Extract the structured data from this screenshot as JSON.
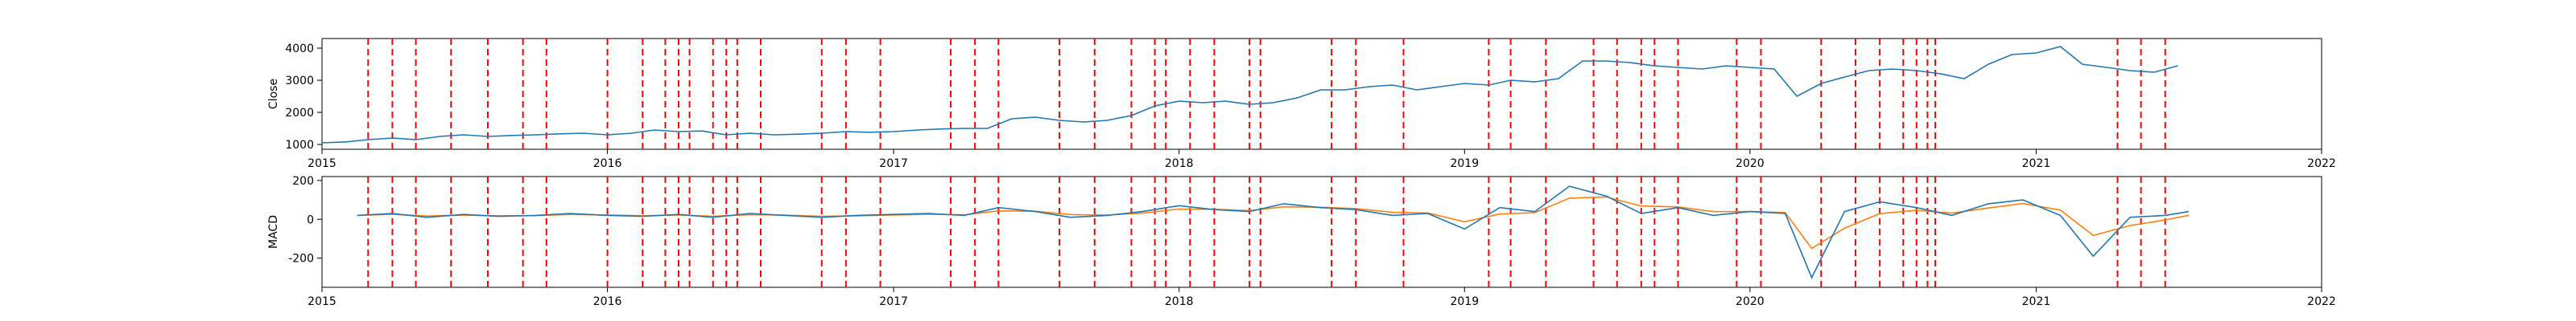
{
  "chart_data": [
    {
      "type": "line",
      "ylabel": "Close",
      "xlim": [
        "2015-01-01",
        "2022-01-01"
      ],
      "ylim": [
        850,
        4300
      ],
      "x_ticks": [
        "2015",
        "2016",
        "2017",
        "2018",
        "2019",
        "2020",
        "2021",
        "2022"
      ],
      "y_ticks": [
        1000,
        2000,
        3000,
        4000
      ],
      "grid": false,
      "colors": {
        "series": "#1f77b4",
        "signal": "#ff0000"
      },
      "series": [
        {
          "x": [
            "2015-01-01",
            "2015-02-01",
            "2015-03-01",
            "2015-04-01",
            "2015-05-01",
            "2015-06-01",
            "2015-07-01",
            "2015-08-01",
            "2015-09-01",
            "2015-10-01",
            "2015-11-01",
            "2015-12-01",
            "2016-01-01",
            "2016-02-01",
            "2016-03-01",
            "2016-04-01",
            "2016-05-01",
            "2016-06-01",
            "2016-07-01",
            "2016-08-01",
            "2016-09-01",
            "2016-10-01",
            "2016-11-01",
            "2016-12-01",
            "2017-01-01",
            "2017-02-01",
            "2017-03-01",
            "2017-04-01",
            "2017-05-01",
            "2017-06-01",
            "2017-07-01",
            "2017-08-01",
            "2017-09-01",
            "2017-10-01",
            "2017-11-01",
            "2017-12-01",
            "2018-01-01",
            "2018-02-01",
            "2018-03-01",
            "2018-04-01",
            "2018-05-01",
            "2018-06-01",
            "2018-07-01",
            "2018-08-01",
            "2018-09-01",
            "2018-10-01",
            "2018-11-01",
            "2018-12-01",
            "2019-01-01",
            "2019-02-01",
            "2019-03-01",
            "2019-04-01",
            "2019-05-01",
            "2019-06-01",
            "2019-07-01",
            "2019-08-01",
            "2019-09-01",
            "2019-10-01",
            "2019-11-01",
            "2019-12-01",
            "2020-01-01",
            "2020-02-01",
            "2020-03-01",
            "2020-04-01",
            "2020-05-01",
            "2020-06-01",
            "2020-07-01",
            "2020-08-01",
            "2020-09-01",
            "2020-10-01",
            "2020-11-01",
            "2020-12-01",
            "2021-01-01",
            "2021-02-01",
            "2021-03-01",
            "2021-04-01",
            "2021-05-01",
            "2021-06-01",
            "2021-07-01"
          ],
          "values": [
            1050,
            1080,
            1150,
            1200,
            1150,
            1250,
            1300,
            1250,
            1280,
            1300,
            1330,
            1350,
            1300,
            1350,
            1450,
            1400,
            1420,
            1300,
            1350,
            1300,
            1320,
            1350,
            1400,
            1380,
            1400,
            1450,
            1480,
            1500,
            1500,
            1800,
            1850,
            1750,
            1700,
            1750,
            1900,
            2200,
            2350,
            2300,
            2350,
            2250,
            2300,
            2450,
            2700,
            2700,
            2800,
            2850,
            2700,
            2800,
            2900,
            2850,
            3000,
            2950,
            3050,
            3600,
            3600,
            3550,
            3450,
            3400,
            3350,
            3450,
            3400,
            3350,
            2500,
            2900,
            3100,
            3300,
            3350,
            3300,
            3200,
            3050,
            3500,
            3800,
            3850,
            4050,
            3500,
            3400,
            3300,
            3250,
            3450
          ]
        }
      ],
      "signals": [
        "2015-03-01",
        "2015-04-01",
        "2015-05-01",
        "2015-06-15",
        "2015-08-01",
        "2015-09-15",
        "2015-10-15",
        "2016-01-01",
        "2016-02-15",
        "2016-03-15",
        "2016-04-01",
        "2016-04-15",
        "2016-05-15",
        "2016-06-01",
        "2016-06-15",
        "2016-07-15",
        "2016-10-01",
        "2016-11-01",
        "2016-12-15",
        "2017-03-15",
        "2017-04-15",
        "2017-05-15",
        "2017-08-01",
        "2017-09-15",
        "2017-11-01",
        "2017-12-01",
        "2017-12-15",
        "2018-01-15",
        "2018-02-15",
        "2018-04-01",
        "2018-04-15",
        "2018-07-15",
        "2018-08-15",
        "2018-10-15",
        "2019-02-01",
        "2019-03-01",
        "2019-04-15",
        "2019-06-15",
        "2019-07-15",
        "2019-08-15",
        "2019-09-01",
        "2019-10-01",
        "2019-12-15",
        "2020-01-15",
        "2020-04-01",
        "2020-05-15",
        "2020-06-15",
        "2020-07-15",
        "2020-08-01",
        "2020-08-15",
        "2020-08-25",
        "2021-04-15",
        "2021-05-15",
        "2021-06-15"
      ]
    },
    {
      "type": "line",
      "ylabel": "MACD",
      "xlim": [
        "2015-01-01",
        "2022-01-01"
      ],
      "ylim": [
        -350,
        220
      ],
      "x_ticks": [
        "2015",
        "2016",
        "2017",
        "2018",
        "2019",
        "2020",
        "2021",
        "2022"
      ],
      "y_ticks": [
        200,
        0,
        -200
      ],
      "grid": false,
      "colors": {
        "series": "#1f77b4",
        "series2": "#ff7f0e",
        "signal": "#ff0000"
      },
      "series": [
        {
          "x": [
            "2015-02-15",
            "2015-04-01",
            "2015-05-15",
            "2015-07-01",
            "2015-08-15",
            "2015-10-01",
            "2015-11-15",
            "2016-01-01",
            "2016-02-15",
            "2016-04-01",
            "2016-05-15",
            "2016-07-01",
            "2016-08-15",
            "2016-10-01",
            "2016-11-15",
            "2017-01-01",
            "2017-02-15",
            "2017-04-01",
            "2017-05-15",
            "2017-07-01",
            "2017-08-15",
            "2017-10-01",
            "2017-11-15",
            "2018-01-01",
            "2018-02-15",
            "2018-04-01",
            "2018-05-15",
            "2018-07-01",
            "2018-08-15",
            "2018-10-01",
            "2018-11-15",
            "2019-01-01",
            "2019-02-15",
            "2019-04-01",
            "2019-05-15",
            "2019-07-01",
            "2019-08-15",
            "2019-10-01",
            "2019-11-15",
            "2020-01-01",
            "2020-02-15",
            "2020-03-20",
            "2020-05-01",
            "2020-06-15",
            "2020-08-01",
            "2020-09-15",
            "2020-11-01",
            "2020-12-15",
            "2021-02-01",
            "2021-03-15",
            "2021-05-01",
            "2021-06-15",
            "2021-07-15"
          ],
          "values": [
            20,
            30,
            10,
            25,
            15,
            20,
            30,
            20,
            15,
            25,
            10,
            30,
            20,
            10,
            20,
            25,
            30,
            20,
            60,
            40,
            10,
            20,
            40,
            70,
            50,
            40,
            80,
            60,
            50,
            20,
            30,
            -50,
            60,
            40,
            170,
            120,
            30,
            60,
            20,
            40,
            30,
            -300,
            40,
            90,
            60,
            20,
            80,
            100,
            20,
            -190,
            10,
            20,
            40
          ]
        }
      ],
      "signals": [
        "2015-03-01",
        "2015-04-01",
        "2015-05-01",
        "2015-06-15",
        "2015-08-01",
        "2015-09-15",
        "2015-10-15",
        "2016-01-01",
        "2016-02-15",
        "2016-03-15",
        "2016-04-01",
        "2016-04-15",
        "2016-05-15",
        "2016-06-01",
        "2016-06-15",
        "2016-07-15",
        "2016-10-01",
        "2016-11-01",
        "2016-12-15",
        "2017-03-15",
        "2017-04-15",
        "2017-05-15",
        "2017-08-01",
        "2017-09-15",
        "2017-11-01",
        "2017-12-01",
        "2017-12-15",
        "2018-01-15",
        "2018-02-15",
        "2018-04-01",
        "2018-04-15",
        "2018-07-15",
        "2018-08-15",
        "2018-10-15",
        "2019-02-01",
        "2019-03-01",
        "2019-04-15",
        "2019-06-15",
        "2019-07-15",
        "2019-08-15",
        "2019-09-01",
        "2019-10-01",
        "2019-12-15",
        "2020-01-15",
        "2020-04-01",
        "2020-05-15",
        "2020-06-15",
        "2020-07-15",
        "2020-08-01",
        "2020-08-15",
        "2020-08-25",
        "2021-04-15",
        "2021-05-15",
        "2021-06-15"
      ]
    }
  ]
}
